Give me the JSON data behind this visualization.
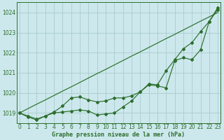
{
  "bg_color": "#cce8ec",
  "grid_color": "#aacccc",
  "line_color": "#2d6e2d",
  "marker_color": "#2d6e2d",
  "title": "Graphe pression niveau de la mer (hPa)",
  "ylim": [
    1018.5,
    1024.5
  ],
  "xlim": [
    -0.3,
    23.3
  ],
  "yticks": [
    1019,
    1020,
    1021,
    1022,
    1023,
    1024
  ],
  "xticks": [
    0,
    1,
    2,
    3,
    4,
    5,
    6,
    7,
    8,
    9,
    10,
    11,
    12,
    13,
    14,
    15,
    16,
    17,
    18,
    19,
    20,
    21,
    22,
    23
  ],
  "series_straight": [
    1019.0,
    1019.22,
    1019.44,
    1019.65,
    1019.87,
    1020.09,
    1020.3,
    1020.52,
    1020.74,
    1020.96,
    1021.17,
    1021.39,
    1021.61,
    1021.83,
    1022.04,
    1022.26,
    1022.48,
    1022.7,
    1022.91,
    1023.13,
    1023.35,
    1023.57,
    1023.78,
    1024.0
  ],
  "series_mid": [
    1019.0,
    1018.85,
    1018.7,
    1018.85,
    1019.05,
    1019.35,
    1019.75,
    1019.8,
    1019.65,
    1019.55,
    1019.6,
    1019.75,
    1019.75,
    1019.85,
    1020.05,
    1020.45,
    1020.4,
    1021.1,
    1021.65,
    1022.2,
    1022.5,
    1023.05,
    1023.55,
    1024.15
  ],
  "series_low": [
    1019.0,
    1018.8,
    1018.65,
    1018.85,
    1019.0,
    1019.05,
    1019.1,
    1019.15,
    1019.1,
    1018.9,
    1018.95,
    1019.0,
    1019.3,
    1019.6,
    1020.05,
    1020.4,
    1020.35,
    1020.25,
    1021.6,
    1021.75,
    1021.65,
    1022.15,
    1023.55,
    1024.25
  ]
}
